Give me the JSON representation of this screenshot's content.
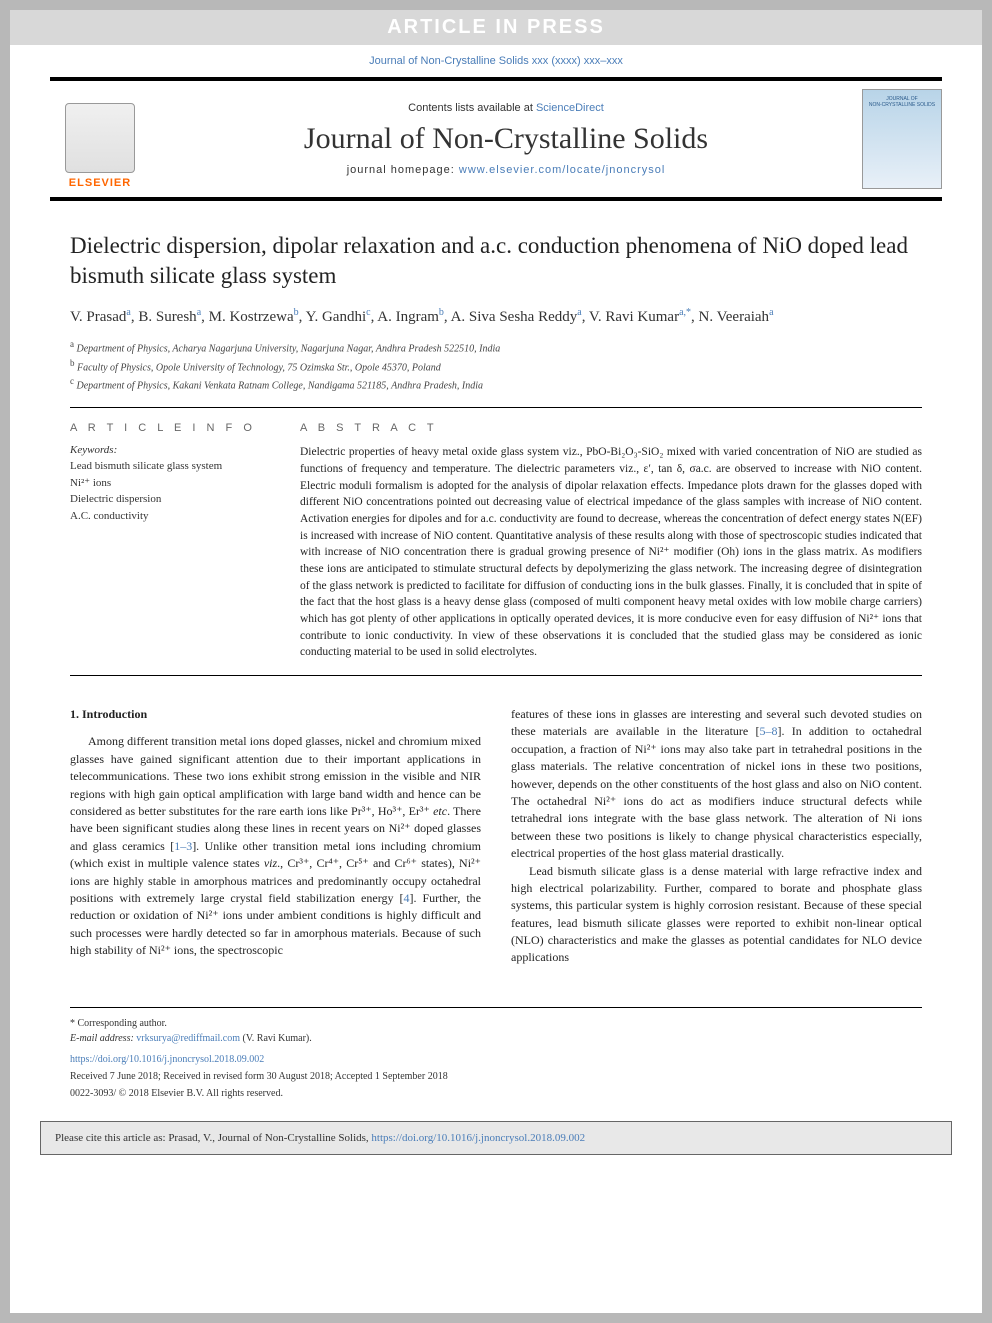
{
  "banner": {
    "text": "ARTICLE IN PRESS"
  },
  "journal_ref": "Journal of Non-Crystalline Solids xxx (xxxx) xxx–xxx",
  "header": {
    "contents_prefix": "Contents lists available at ",
    "contents_link": "ScienceDirect",
    "journal_name": "Journal of Non-Crystalline Solids",
    "homepage_prefix": "journal homepage: ",
    "homepage_link": "www.elsevier.com/locate/jnoncrysol",
    "publisher": "ELSEVIER",
    "cover_line1": "JOURNAL OF",
    "cover_line2": "NON-CRYSTALLINE SOLIDS"
  },
  "article": {
    "title": "Dielectric dispersion, dipolar relaxation and a.c. conduction phenomena of NiO doped lead bismuth silicate glass system",
    "authors_html": "V. Prasad<sup>a</sup>, B. Suresh<sup>a</sup>, M. Kostrzewa<sup>b</sup>, Y. Gandhi<sup>c</sup>, A. Ingram<sup>b</sup>, A. Siva Sesha Reddy<sup>a</sup>, V. Ravi Kumar<sup>a,*</sup>, N. Veeraiah<sup>a</sup>",
    "affiliations": [
      {
        "sup": "a",
        "text": "Department of Physics, Acharya Nagarjuna University, Nagarjuna Nagar, Andhra Pradesh 522510, India"
      },
      {
        "sup": "b",
        "text": "Faculty of Physics, Opole University of Technology, 75 Ozimska Str., Opole 45370, Poland"
      },
      {
        "sup": "c",
        "text": "Department of Physics, Kakani Venkata Ratnam College, Nandigama 521185, Andhra Pradesh, India"
      }
    ]
  },
  "info": {
    "label": "A R T I C L E  I N F O",
    "keywords_label": "Keywords:",
    "keywords": [
      "Lead bismuth silicate glass system",
      "Ni²⁺ ions",
      "Dielectric dispersion",
      "A.C. conductivity"
    ]
  },
  "abstract": {
    "label": "A B S T R A C T",
    "text": "Dielectric properties of heavy metal oxide glass system viz., PbO-Bi₂O₃-SiO₂ mixed with varied concentration of NiO are studied as functions of frequency and temperature. The dielectric parameters viz., ε′, tan δ, σa.c. are observed to increase with NiO content. Electric moduli formalism is adopted for the analysis of dipolar relaxation effects. Impedance plots drawn for the glasses doped with different NiO concentrations pointed out decreasing value of electrical impedance of the glass samples with increase of NiO content. Activation energies for dipoles and for a.c. conductivity are found to decrease, whereas the concentration of defect energy states N(EF) is increased with increase of NiO content. Quantitative analysis of these results along with those of spectroscopic studies indicated that with increase of NiO concentration there is gradual growing presence of Ni²⁺ modifier (Oh) ions in the glass matrix. As modifiers these ions are anticipated to stimulate structural defects by depolymerizing the glass network. The increasing degree of disintegration of the glass network is predicted to facilitate for diffusion of conducting ions in the bulk glasses. Finally, it is concluded that in spite of the fact that the host glass is a heavy dense glass (composed of multi component heavy metal oxides with low mobile charge carriers) which has got plenty of other applications in optically operated devices, it is more conducive even for easy diffusion of Ni²⁺ ions that contribute to ionic conductivity. In view of these observations it is concluded that the studied glass may be considered as ionic conducting material to be used in solid electrolytes."
  },
  "content": {
    "section_number": "1.",
    "section_title": "Introduction",
    "para1_html": "Among different transition metal ions doped glasses, nickel and chromium mixed glasses have gained significant attention due to their important applications in telecommunications. These two ions exhibit strong emission in the visible and NIR regions with high gain optical amplification with large band width and hence can be considered as better substitutes for the rare earth ions like Pr³⁺, Ho³⁺, Er³⁺ <i>etc</i>. There have been significant studies along these lines in recent years on Ni²⁺ doped glasses and glass ceramics [<a>1–3</a>]. Unlike other transition metal ions including chromium (which exist in multiple valence states <i>viz</i>., Cr³⁺, Cr⁴⁺, Cr⁵⁺ and Cr⁶⁺ states), Ni²⁺ ions are highly stable in amorphous matrices and predominantly occupy octahedral positions with extremely large crystal field stabilization energy [<a>4</a>]. Further, the reduction or oxidation of Ni²⁺ ions under ambient conditions is highly difficult and such processes were hardly detected so far in amorphous materials. Because of such high stability of Ni²⁺ ions, the spectroscopic",
    "para2_html": "features of these ions in glasses are interesting and several such devoted studies on these materials are available in the literature [<a>5–8</a>]. In addition to octahedral occupation, a fraction of Ni²⁺ ions may also take part in tetrahedral positions in the glass materials. The relative concentration of nickel ions in these two positions, however, depends on the other constituents of the host glass and also on NiO content. The octahedral Ni²⁺ ions do act as modifiers induce structural defects while tetrahedral ions integrate with the base glass network. The alteration of Ni ions between these two positions is likely to change physical characteristics especially, electrical properties of the host glass material drastically.",
    "para3_html": "Lead bismuth silicate glass is a dense material with large refractive index and high electrical polarizability. Further, compared to borate and phosphate glass systems, this particular system is highly corrosion resistant. Because of these special features, lead bismuth silicate glasses were reported to exhibit non-linear optical (NLO) characteristics and make the glasses as potential candidates for NLO device applications"
  },
  "footer": {
    "corresponding": "* Corresponding author.",
    "email_label": "E-mail address:",
    "email": "vrksurya@rediffmail.com",
    "email_name": "(V. Ravi Kumar).",
    "doi": "https://doi.org/10.1016/j.jnoncrysol.2018.09.002",
    "dates": "Received 7 June 2018; Received in revised form 30 August 2018; Accepted 1 September 2018",
    "issn": "0022-3093/ © 2018 Elsevier B.V. All rights reserved."
  },
  "cite_box": {
    "prefix": "Please cite this article as: Prasad, V., Journal of Non-Crystalline Solids, ",
    "link": "https://doi.org/10.1016/j.jnoncrysol.2018.09.002"
  },
  "colors": {
    "link": "#4a7db8",
    "publisher_orange": "#ff6600",
    "page_bg": "#ffffff",
    "outer_bg": "#b8b8b8"
  }
}
